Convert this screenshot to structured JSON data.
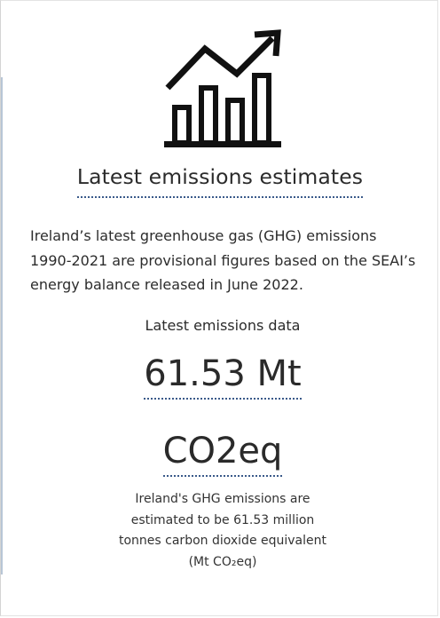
{
  "panel": {
    "icon": "bar-chart-trend-up-icon",
    "heading": "Latest emissions estimates",
    "intro": "Ireland’s latest greenhouse gas (GHG) emissions 1990-2021 are provisional figures based on the SEAI’s energy balance released in June 2022.",
    "data_label": "Latest emissions data",
    "value_amount": "61.53 Mt",
    "value_unit": "CO2eq",
    "caption_lines": [
      "Ireland's GHG emissions are",
      "estimated to be 61.53 million",
      "tonnes carbon dioxide equivalent",
      "(Mt CO₂eq)"
    ]
  },
  "colors": {
    "text": "#2b2b2b",
    "underline": "#3a5a8a",
    "icon": "#111111"
  }
}
